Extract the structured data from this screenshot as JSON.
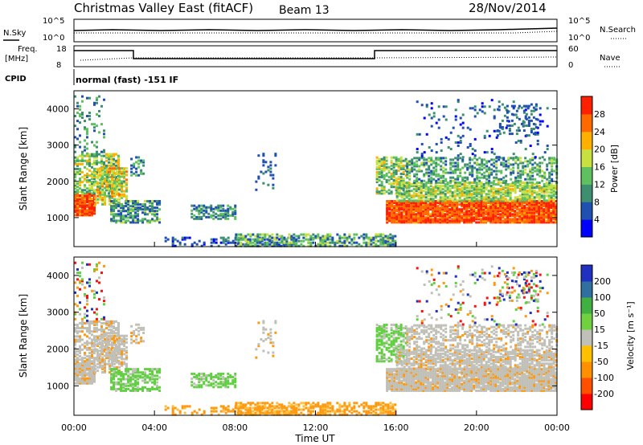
{
  "header": {
    "title": "Christmas Valley East (fitACF)",
    "beam": "Beam 13",
    "date": "28/Nov/2014"
  },
  "ancillary": {
    "nsky_label": "N.Sky",
    "nsearch_label": "N.Search",
    "noise_ticks": [
      "10^5",
      "10^0"
    ],
    "freq_label_line1": "Freq.",
    "freq_label_line2": "[MHz]",
    "freq_ticks": [
      "18",
      "8"
    ],
    "nave_label": "Nave",
    "nave_ticks": [
      "60",
      "0"
    ],
    "cpid_label": "CPID",
    "cpid_value": "normal (fast) -151 IF"
  },
  "chart_data": [
    {
      "type": "heatmap",
      "name": "power-panel",
      "ylabel": "Slant Range [km]",
      "xlabel": "",
      "ylim": [
        200,
        4500
      ],
      "yticks": [
        "1000",
        "2000",
        "3000",
        "4000"
      ],
      "xticks": [
        "00:00",
        "04:00",
        "08:00",
        "12:00",
        "16:00",
        "20:00",
        "00:00"
      ],
      "colorbar_label": "Power [dB]",
      "colorbar_ticks": [
        "4",
        "8",
        "12",
        "16",
        "20",
        "24",
        "28"
      ],
      "colorbar_colors": [
        "#0000ff",
        "#2050b0",
        "#3d8f6f",
        "#5fc060",
        "#c8e040",
        "#ffb000",
        "#ff6a00",
        "#ff2000"
      ],
      "colorbar_range": [
        0,
        30
      ]
    },
    {
      "type": "heatmap",
      "name": "velocity-panel",
      "ylabel": "Slant Range [km]",
      "xlabel": "Time UT",
      "ylim": [
        200,
        4500
      ],
      "yticks": [
        "1000",
        "2000",
        "3000",
        "4000"
      ],
      "xticks": [
        "00:00",
        "04:00",
        "08:00",
        "12:00",
        "16:00",
        "20:00",
        "00:00"
      ],
      "colorbar_label": "Velocity [m s⁻¹]",
      "colorbar_ticks": [
        "200",
        "100",
        "50",
        "15",
        "-15",
        "-50",
        "-100",
        "-200"
      ],
      "colorbar_colors": [
        "#2030c0",
        "#3070a0",
        "#40b040",
        "#70d040",
        "#c0c0b8",
        "#ffc000",
        "#ff9000",
        "#ff5000",
        "#ff0000"
      ]
    }
  ],
  "colors": {
    "grey": "#c0c0b8",
    "green": "#60d040",
    "orange": "#ff9a10",
    "red": "#ff1010"
  }
}
